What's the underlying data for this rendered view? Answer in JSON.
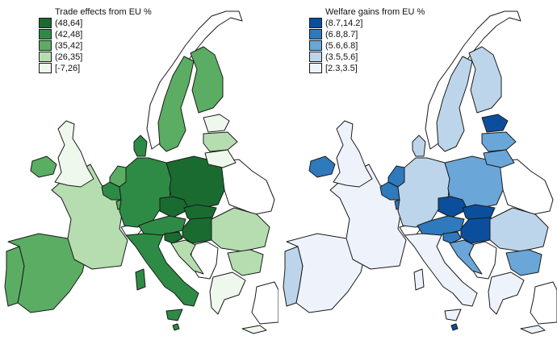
{
  "figure": {
    "maps": [
      {
        "title": "Trade effects from EU %",
        "legend": [
          {
            "label": "(48,64]",
            "color": "#1a6b30"
          },
          {
            "label": "(42,48]",
            "color": "#2e8b45"
          },
          {
            "label": "(35,42]",
            "color": "#5aad63"
          },
          {
            "label": "(26,35]",
            "color": "#b5ddb0"
          },
          {
            "label": "[-7,26]",
            "color": "#eef8ec"
          }
        ]
      },
      {
        "title": "Welfare gains from EU %",
        "legend": [
          {
            "label": "(8.7,14.2]",
            "color": "#0b4f9c"
          },
          {
            "label": "(6.8,8.7]",
            "color": "#2f79bd"
          },
          {
            "label": "(5.6,6.8]",
            "color": "#6aa6d8"
          },
          {
            "label": "(3.5,5.6]",
            "color": "#bcd5ea"
          },
          {
            "label": "[2.3,3.5]",
            "color": "#eef3fb"
          }
        ]
      }
    ]
  },
  "countries": [
    {
      "id": "portugal",
      "trade": "#5aad63",
      "welfare": "#bcd5ea"
    },
    {
      "id": "spain",
      "trade": "#5aad63",
      "welfare": "#eef3fb"
    },
    {
      "id": "france",
      "trade": "#b5ddb0",
      "welfare": "#eef3fb"
    },
    {
      "id": "ireland",
      "trade": "#5aad63",
      "welfare": "#2f79bd"
    },
    {
      "id": "uk",
      "trade": "#eef8ec",
      "welfare": "#eef3fb"
    },
    {
      "id": "belgium",
      "trade": "#2e8b45",
      "welfare": "#2f79bd"
    },
    {
      "id": "netherlands",
      "trade": "#5aad63",
      "welfare": "#2f79bd"
    },
    {
      "id": "luxembourg",
      "trade": "#5aad63",
      "welfare": "#2f79bd"
    },
    {
      "id": "germany",
      "trade": "#2e8b45",
      "welfare": "#bcd5ea"
    },
    {
      "id": "denmark",
      "trade": "#2e8b45",
      "welfare": "#bcd5ea"
    },
    {
      "id": "poland",
      "trade": "#1a6b30",
      "welfare": "#6aa6d8"
    },
    {
      "id": "czechia",
      "trade": "#1a6b30",
      "welfare": "#0b4f9c"
    },
    {
      "id": "slovakia",
      "trade": "#1a6b30",
      "welfare": "#0b4f9c"
    },
    {
      "id": "austria",
      "trade": "#2e8b45",
      "welfare": "#2f79bd"
    },
    {
      "id": "hungary",
      "trade": "#1a6b30",
      "welfare": "#0b4f9c"
    },
    {
      "id": "slovenia",
      "trade": "#1a6b30",
      "welfare": "#2f79bd"
    },
    {
      "id": "croatia",
      "trade": "#b5ddb0",
      "welfare": "#6aa6d8"
    },
    {
      "id": "italy",
      "trade": "#2e8b45",
      "welfare": "#eef3fb"
    },
    {
      "id": "sardinia",
      "trade": "#2e8b45",
      "welfare": "#eef3fb"
    },
    {
      "id": "sicily",
      "trade": "#2e8b45",
      "welfare": "#eef3fb"
    },
    {
      "id": "malta",
      "trade": "#2e8b45",
      "welfare": "#0b4f9c"
    },
    {
      "id": "romania",
      "trade": "#b5ddb0",
      "welfare": "#bcd5ea"
    },
    {
      "id": "bulgaria",
      "trade": "#b5ddb0",
      "welfare": "#6aa6d8"
    },
    {
      "id": "greece",
      "trade": "#eef8ec",
      "welfare": "#eef3fb"
    },
    {
      "id": "cyprus",
      "trade": "#eef8ec",
      "welfare": "#eef3fb"
    },
    {
      "id": "sweden",
      "trade": "#5aad63",
      "welfare": "#bcd5ea"
    },
    {
      "id": "finland",
      "trade": "#5aad63",
      "welfare": "#bcd5ea"
    },
    {
      "id": "estonia",
      "trade": "#eef8ec",
      "welfare": "#0b4f9c"
    },
    {
      "id": "latvia",
      "trade": "#b5ddb0",
      "welfare": "#6aa6d8"
    },
    {
      "id": "lithuania",
      "trade": "#eef8ec",
      "welfare": "#6aa6d8"
    }
  ]
}
